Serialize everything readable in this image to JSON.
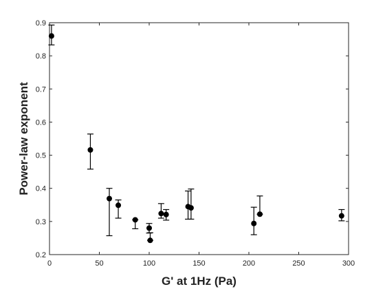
{
  "chart_data": {
    "type": "scatter",
    "title": "",
    "xlabel": "G' at 1Hz (Pa)",
    "ylabel": "Power-law exponent",
    "xlim": [
      0,
      300
    ],
    "ylim": [
      0.2,
      0.9
    ],
    "x_ticks": [
      0,
      50,
      100,
      150,
      200,
      250,
      300
    ],
    "y_ticks": [
      0.2,
      0.3,
      0.4,
      0.5,
      0.6,
      0.7,
      0.8,
      0.9
    ],
    "x_tick_labels": [
      "0",
      "50",
      "100",
      "150",
      "200",
      "250",
      "300"
    ],
    "y_tick_labels": [
      "0.2",
      "0.3",
      "0.4",
      "0.5",
      "0.6",
      "0.7",
      "0.8",
      "0.9"
    ],
    "grid": false,
    "marker_color": "#000000",
    "points": [
      {
        "x": 2,
        "y": 0.86,
        "err_low": 0.833,
        "err_high": 0.893
      },
      {
        "x": 41,
        "y": 0.516,
        "err_low": 0.458,
        "err_high": 0.564
      },
      {
        "x": 60,
        "y": 0.369,
        "err_low": 0.257,
        "err_high": 0.4
      },
      {
        "x": 69,
        "y": 0.349,
        "err_low": 0.31,
        "err_high": 0.365
      },
      {
        "x": 86,
        "y": 0.305,
        "err_low": 0.278,
        "err_high": 0.305
      },
      {
        "x": 100,
        "y": 0.28,
        "err_low": 0.265,
        "err_high": 0.294
      },
      {
        "x": 101,
        "y": 0.243,
        "err_low": 0.243,
        "err_high": 0.266
      },
      {
        "x": 112,
        "y": 0.324,
        "err_low": 0.31,
        "err_high": 0.354
      },
      {
        "x": 117,
        "y": 0.321,
        "err_low": 0.304,
        "err_high": 0.336
      },
      {
        "x": 139,
        "y": 0.345,
        "err_low": 0.307,
        "err_high": 0.392
      },
      {
        "x": 142,
        "y": 0.341,
        "err_low": 0.307,
        "err_high": 0.398
      },
      {
        "x": 205,
        "y": 0.294,
        "err_low": 0.26,
        "err_high": 0.343
      },
      {
        "x": 211,
        "y": 0.322,
        "err_low": 0.322,
        "err_high": 0.377
      },
      {
        "x": 293,
        "y": 0.317,
        "err_low": 0.302,
        "err_high": 0.336
      }
    ]
  }
}
